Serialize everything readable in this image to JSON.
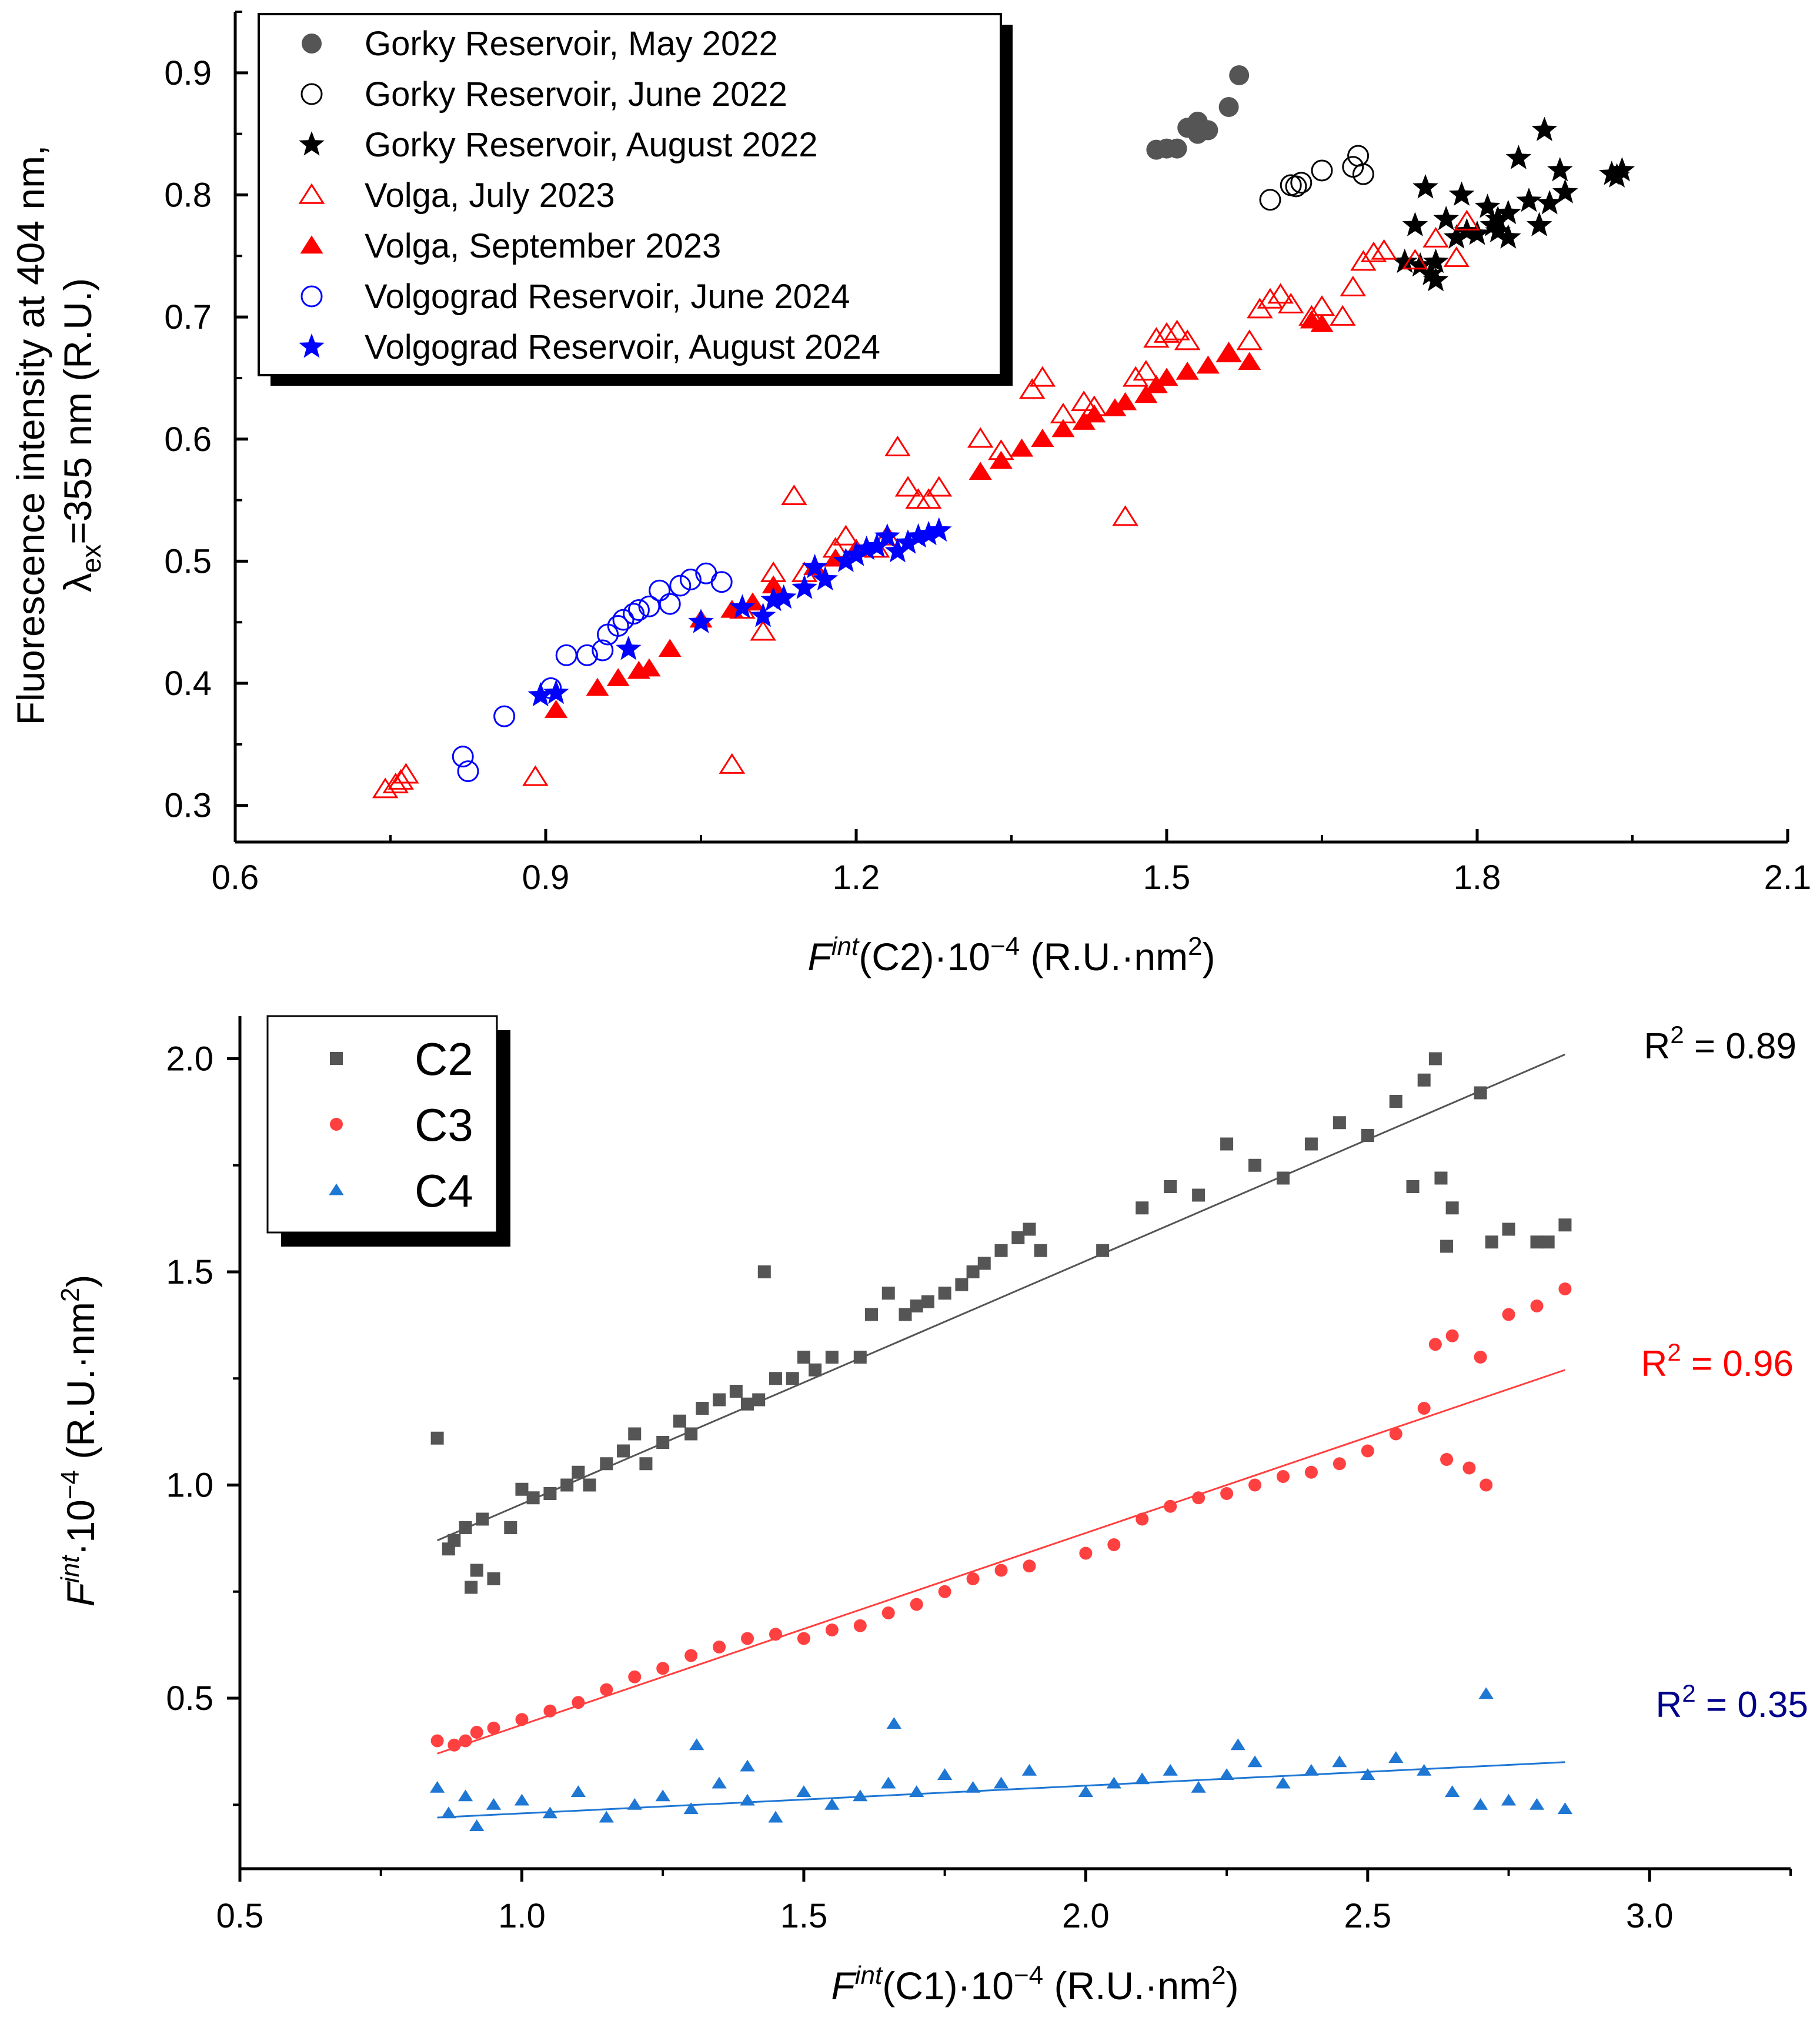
{
  "colors": {
    "black": "#000000",
    "gray": "#555555",
    "red": "#ff0000",
    "blue": "#0000ff",
    "c3_red": "#ff4040",
    "c4_blue": "#1f77d4"
  },
  "chart_data": [
    {
      "type": "scatter",
      "title": "",
      "ylabel_line1": "Fluorescence intensity at 404 nm,",
      "ylabel_lambda": "λ",
      "ylabel_sub": "ex",
      "ylabel_rest": "=355 nm (R.U.)",
      "xlabel_F": "F",
      "xlabel_sup": "int",
      "xlabel_rest": "(C2)·10",
      "xlabel_exp": "−4",
      "xlabel_units": " (R.U.·nm",
      "xlabel_units_exp": "2",
      "xlabel_close": ")",
      "xlim": [
        0.6,
        2.1
      ],
      "ylim": [
        0.27,
        0.95
      ],
      "xticks": [
        0.6,
        0.9,
        1.2,
        1.5,
        1.8,
        2.1
      ],
      "xtick_labels": [
        "0.6",
        "0.9",
        "1.2",
        "1.5",
        "1.8",
        "2.1"
      ],
      "yticks": [
        0.3,
        0.4,
        0.5,
        0.6,
        0.7,
        0.8,
        0.9
      ],
      "ytick_labels": [
        "0.3",
        "0.4",
        "0.5",
        "0.6",
        "0.7",
        "0.8",
        "0.9"
      ],
      "legend_position": "top-left",
      "series": [
        {
          "name": "Gorky Reservoir, May 2022",
          "marker": "circle",
          "filled": true,
          "color": "#555555",
          "x": [
            1.49,
            1.5,
            1.51,
            1.52,
            1.53,
            1.53,
            1.54,
            1.56,
            1.57
          ],
          "y": [
            0.837,
            0.838,
            0.838,
            0.855,
            0.86,
            0.85,
            0.853,
            0.872,
            0.898
          ]
        },
        {
          "name": "Gorky Reservoir, June 2022",
          "marker": "circle",
          "filled": false,
          "color": "#000000",
          "x": [
            1.6,
            1.62,
            1.625,
            1.63,
            1.65,
            1.68,
            1.685,
            1.69
          ],
          "y": [
            0.796,
            0.808,
            0.807,
            0.81,
            0.82,
            0.823,
            0.832,
            0.817
          ]
        },
        {
          "name": "Gorky Reservoir, August 2022",
          "marker": "star",
          "filled": true,
          "color": "#000000",
          "x": [
            1.73,
            1.74,
            1.745,
            1.75,
            1.755,
            1.76,
            1.76,
            1.77,
            1.78,
            1.785,
            1.79,
            1.8,
            1.81,
            1.815,
            1.82,
            1.82,
            1.83,
            1.83,
            1.84,
            1.85,
            1.86,
            1.865,
            1.87,
            1.88,
            1.885,
            1.93,
            1.935,
            1.94
          ],
          "y": [
            0.745,
            0.775,
            0.742,
            0.806,
            0.735,
            0.745,
            0.73,
            0.78,
            0.765,
            0.8,
            0.77,
            0.768,
            0.79,
            0.775,
            0.78,
            0.77,
            0.785,
            0.765,
            0.83,
            0.795,
            0.775,
            0.853,
            0.793,
            0.82,
            0.802,
            0.817,
            0.815,
            0.82
          ]
        },
        {
          "name": "Volga, July 2023",
          "marker": "triangle",
          "filled": false,
          "color": "#ff0000",
          "x": [
            0.745,
            0.755,
            0.76,
            0.765,
            0.89,
            1.08,
            1.09,
            1.11,
            1.12,
            1.14,
            1.15,
            1.18,
            1.19,
            1.22,
            1.23,
            1.24,
            1.25,
            1.26,
            1.27,
            1.28,
            1.32,
            1.34,
            1.37,
            1.38,
            1.4,
            1.42,
            1.43,
            1.46,
            1.47,
            1.48,
            1.49,
            1.5,
            1.51,
            1.52,
            1.56,
            1.58,
            1.59,
            1.6,
            1.61,
            1.62,
            1.64,
            1.65,
            1.67,
            1.68,
            1.69,
            1.7,
            1.71,
            1.74,
            1.76,
            1.78,
            1.79
          ],
          "y": [
            0.313,
            0.317,
            0.32,
            0.325,
            0.323,
            0.333,
            0.46,
            0.442,
            0.49,
            0.553,
            0.49,
            0.51,
            0.52,
            0.51,
            0.52,
            0.593,
            0.56,
            0.55,
            0.55,
            0.56,
            0.6,
            0.59,
            0.64,
            0.65,
            0.62,
            0.63,
            0.626,
            0.536,
            0.65,
            0.655,
            0.682,
            0.686,
            0.688,
            0.68,
            0.67,
            0.68,
            0.706,
            0.714,
            0.718,
            0.71,
            0.7,
            0.708,
            0.7,
            0.724,
            0.745,
            0.752,
            0.754,
            0.746,
            0.764,
            0.748,
            0.778
          ]
        },
        {
          "name": "Volga, September 2023",
          "marker": "triangle",
          "filled": true,
          "color": "#ff0000",
          "x": [
            0.91,
            0.95,
            0.97,
            0.99,
            1.0,
            1.02,
            1.05,
            1.08,
            1.1,
            1.12,
            1.16,
            1.18,
            1.2,
            1.32,
            1.34,
            1.36,
            1.38,
            1.4,
            1.42,
            1.43,
            1.45,
            1.46,
            1.48,
            1.49,
            1.5,
            1.52,
            1.54,
            1.56,
            1.58,
            1.64,
            1.65
          ],
          "y": [
            0.378,
            0.396,
            0.404,
            0.41,
            0.412,
            0.428,
            0.452,
            0.46,
            0.466,
            0.48,
            0.495,
            0.502,
            0.51,
            0.573,
            0.582,
            0.592,
            0.6,
            0.608,
            0.614,
            0.62,
            0.625,
            0.63,
            0.636,
            0.644,
            0.65,
            0.655,
            0.66,
            0.67,
            0.663,
            0.697,
            0.694
          ]
        },
        {
          "name": "Volgograd Reservoir, June 2024",
          "marker": "circle",
          "filled": false,
          "color": "#0000ff",
          "x": [
            0.82,
            0.825,
            0.86,
            0.905,
            0.92,
            0.94,
            0.955,
            0.96,
            0.97,
            0.975,
            0.985,
            0.99,
            1.0,
            1.01,
            1.02,
            1.03,
            1.04,
            1.055,
            1.07
          ],
          "y": [
            0.34,
            0.328,
            0.373,
            0.396,
            0.423,
            0.423,
            0.427,
            0.44,
            0.447,
            0.452,
            0.457,
            0.46,
            0.463,
            0.476,
            0.465,
            0.48,
            0.485,
            0.49,
            0.483
          ]
        },
        {
          "name": "Volgograd Reservoir, August 2024",
          "marker": "star",
          "filled": true,
          "color": "#0000ff",
          "x": [
            0.895,
            0.91,
            0.98,
            1.05,
            1.09,
            1.11,
            1.12,
            1.13,
            1.15,
            1.16,
            1.17,
            1.19,
            1.2,
            1.21,
            1.22,
            1.23,
            1.24,
            1.25,
            1.26,
            1.27,
            1.28
          ],
          "y": [
            0.39,
            0.392,
            0.428,
            0.45,
            0.462,
            0.455,
            0.468,
            0.47,
            0.478,
            0.495,
            0.485,
            0.5,
            0.505,
            0.51,
            0.512,
            0.52,
            0.508,
            0.515,
            0.52,
            0.522,
            0.525
          ]
        }
      ]
    },
    {
      "type": "scatter",
      "title": "",
      "ylabel_F": "F",
      "ylabel_sup": "int",
      "ylabel_rest": "·10",
      "ylabel_exp": "−4",
      "ylabel_units": " (R.U.·nm",
      "ylabel_units_exp": "2",
      "ylabel_close": ")",
      "xlabel_F": "F",
      "xlabel_sup": "int",
      "xlabel_rest": "(C1)·10",
      "xlabel_exp": "−4",
      "xlabel_units": " (R.U.·nm",
      "xlabel_units_exp": "2",
      "xlabel_close": ")",
      "xlim": [
        0.5,
        3.25
      ],
      "ylim": [
        0.1,
        2.1
      ],
      "xticks": [
        0.5,
        1.0,
        1.5,
        2.0,
        2.5,
        3.0
      ],
      "xtick_labels": [
        "0.5",
        "1.0",
        "1.5",
        "2.0",
        "2.5",
        "3.0"
      ],
      "yticks": [
        0.5,
        1.0,
        1.5,
        2.0
      ],
      "ytick_labels": [
        "0.5",
        "1.0",
        "1.5",
        "2.0"
      ],
      "legend_position": "top-left",
      "series": [
        {
          "name": "C2",
          "marker": "square",
          "color": "#555555",
          "x": [
            0.85,
            0.87,
            0.88,
            0.9,
            0.92,
            0.95,
            0.98,
            1.0,
            1.02,
            1.05,
            1.08,
            1.1,
            1.12,
            1.15,
            1.18,
            1.2,
            1.22,
            1.25,
            1.28,
            1.3,
            1.32,
            1.35,
            1.38,
            1.4,
            1.42,
            1.43,
            1.45,
            1.48,
            1.5,
            1.52,
            1.55,
            1.6,
            1.62,
            1.65,
            1.68,
            1.7,
            1.72,
            1.75,
            1.78,
            1.8,
            1.82,
            1.85,
            1.88,
            1.9,
            1.92,
            2.03,
            2.1,
            2.15,
            2.2,
            2.25,
            2.3,
            2.35,
            2.4,
            2.45,
            2.5,
            2.55,
            2.6,
            2.62,
            2.65,
            2.7,
            2.75,
            2.8,
            2.85,
            0.91,
            0.93,
            2.58,
            2.63,
            2.64,
            2.72,
            2.82
          ],
          "y": [
            1.11,
            0.85,
            0.87,
            0.9,
            0.8,
            0.78,
            0.9,
            0.99,
            0.97,
            0.98,
            1.0,
            1.03,
            1.0,
            1.05,
            1.08,
            1.12,
            1.05,
            1.1,
            1.15,
            1.12,
            1.18,
            1.2,
            1.22,
            1.19,
            1.2,
            1.5,
            1.25,
            1.25,
            1.3,
            1.27,
            1.3,
            1.3,
            1.4,
            1.45,
            1.4,
            1.42,
            1.43,
            1.45,
            1.47,
            1.5,
            1.52,
            1.55,
            1.58,
            1.6,
            1.55,
            1.55,
            1.65,
            1.7,
            1.68,
            1.8,
            1.75,
            1.72,
            1.8,
            1.85,
            1.82,
            1.9,
            1.95,
            2.0,
            1.65,
            1.92,
            1.6,
            1.57,
            1.61,
            0.76,
            0.92,
            1.7,
            1.72,
            1.56,
            1.57,
            1.57
          ]
        },
        {
          "name": "C3",
          "marker": "circle",
          "color": "#ff4040",
          "x": [
            0.85,
            0.88,
            0.9,
            0.92,
            0.95,
            1.0,
            1.05,
            1.1,
            1.15,
            1.2,
            1.25,
            1.3,
            1.35,
            1.4,
            1.45,
            1.5,
            1.55,
            1.6,
            1.65,
            1.7,
            1.75,
            1.8,
            1.85,
            1.9,
            2.0,
            2.05,
            2.1,
            2.15,
            2.2,
            2.25,
            2.3,
            2.35,
            2.4,
            2.45,
            2.5,
            2.55,
            2.6,
            2.62,
            2.65,
            2.7,
            2.75,
            2.8,
            2.85,
            2.64,
            2.68,
            2.71
          ],
          "y": [
            0.4,
            0.39,
            0.4,
            0.42,
            0.43,
            0.45,
            0.47,
            0.49,
            0.52,
            0.55,
            0.57,
            0.6,
            0.62,
            0.64,
            0.65,
            0.64,
            0.66,
            0.67,
            0.7,
            0.72,
            0.75,
            0.78,
            0.8,
            0.81,
            0.84,
            0.86,
            0.92,
            0.95,
            0.97,
            0.98,
            1.0,
            1.02,
            1.03,
            1.05,
            1.08,
            1.12,
            1.18,
            1.33,
            1.35,
            1.3,
            1.4,
            1.42,
            1.46,
            1.06,
            1.04,
            1.0
          ]
        },
        {
          "name": "C4",
          "marker": "triangle",
          "color": "#1f77d4",
          "x": [
            0.85,
            0.87,
            0.9,
            0.92,
            0.95,
            1.0,
            1.05,
            1.1,
            1.15,
            1.2,
            1.25,
            1.3,
            1.35,
            1.4,
            1.45,
            1.5,
            1.55,
            1.6,
            1.65,
            1.7,
            1.75,
            1.8,
            1.85,
            1.9,
            2.0,
            2.05,
            2.1,
            2.15,
            2.2,
            2.25,
            2.3,
            2.35,
            2.4,
            2.45,
            2.5,
            2.55,
            2.6,
            2.65,
            2.7,
            2.75,
            2.8,
            2.85,
            1.31,
            1.4,
            1.66,
            2.27,
            2.71
          ],
          "y": [
            0.29,
            0.23,
            0.27,
            0.2,
            0.25,
            0.26,
            0.23,
            0.28,
            0.22,
            0.25,
            0.27,
            0.24,
            0.3,
            0.26,
            0.22,
            0.28,
            0.25,
            0.27,
            0.3,
            0.28,
            0.32,
            0.29,
            0.3,
            0.33,
            0.28,
            0.3,
            0.31,
            0.33,
            0.29,
            0.32,
            0.35,
            0.3,
            0.33,
            0.35,
            0.32,
            0.36,
            0.33,
            0.28,
            0.25,
            0.26,
            0.25,
            0.24,
            0.39,
            0.34,
            0.44,
            0.39,
            0.51
          ]
        }
      ],
      "fits": [
        {
          "series": "C2",
          "x": [
            0.85,
            2.85
          ],
          "y": [
            0.87,
            2.01
          ],
          "r2_label": "R",
          "r2_exp": "2",
          "r2_value": " = 0.89",
          "color": "#000000"
        },
        {
          "series": "C3",
          "x": [
            0.85,
            2.85
          ],
          "y": [
            0.37,
            1.27
          ],
          "r2_label": "R",
          "r2_exp": "2",
          "r2_value": " = 0.96",
          "color": "#ff0000"
        },
        {
          "series": "C4",
          "x": [
            0.85,
            2.85
          ],
          "y": [
            0.22,
            0.35
          ],
          "r2_label": "R",
          "r2_exp": "2",
          "r2_value": " = 0.35",
          "color": "#00008b"
        }
      ]
    }
  ]
}
